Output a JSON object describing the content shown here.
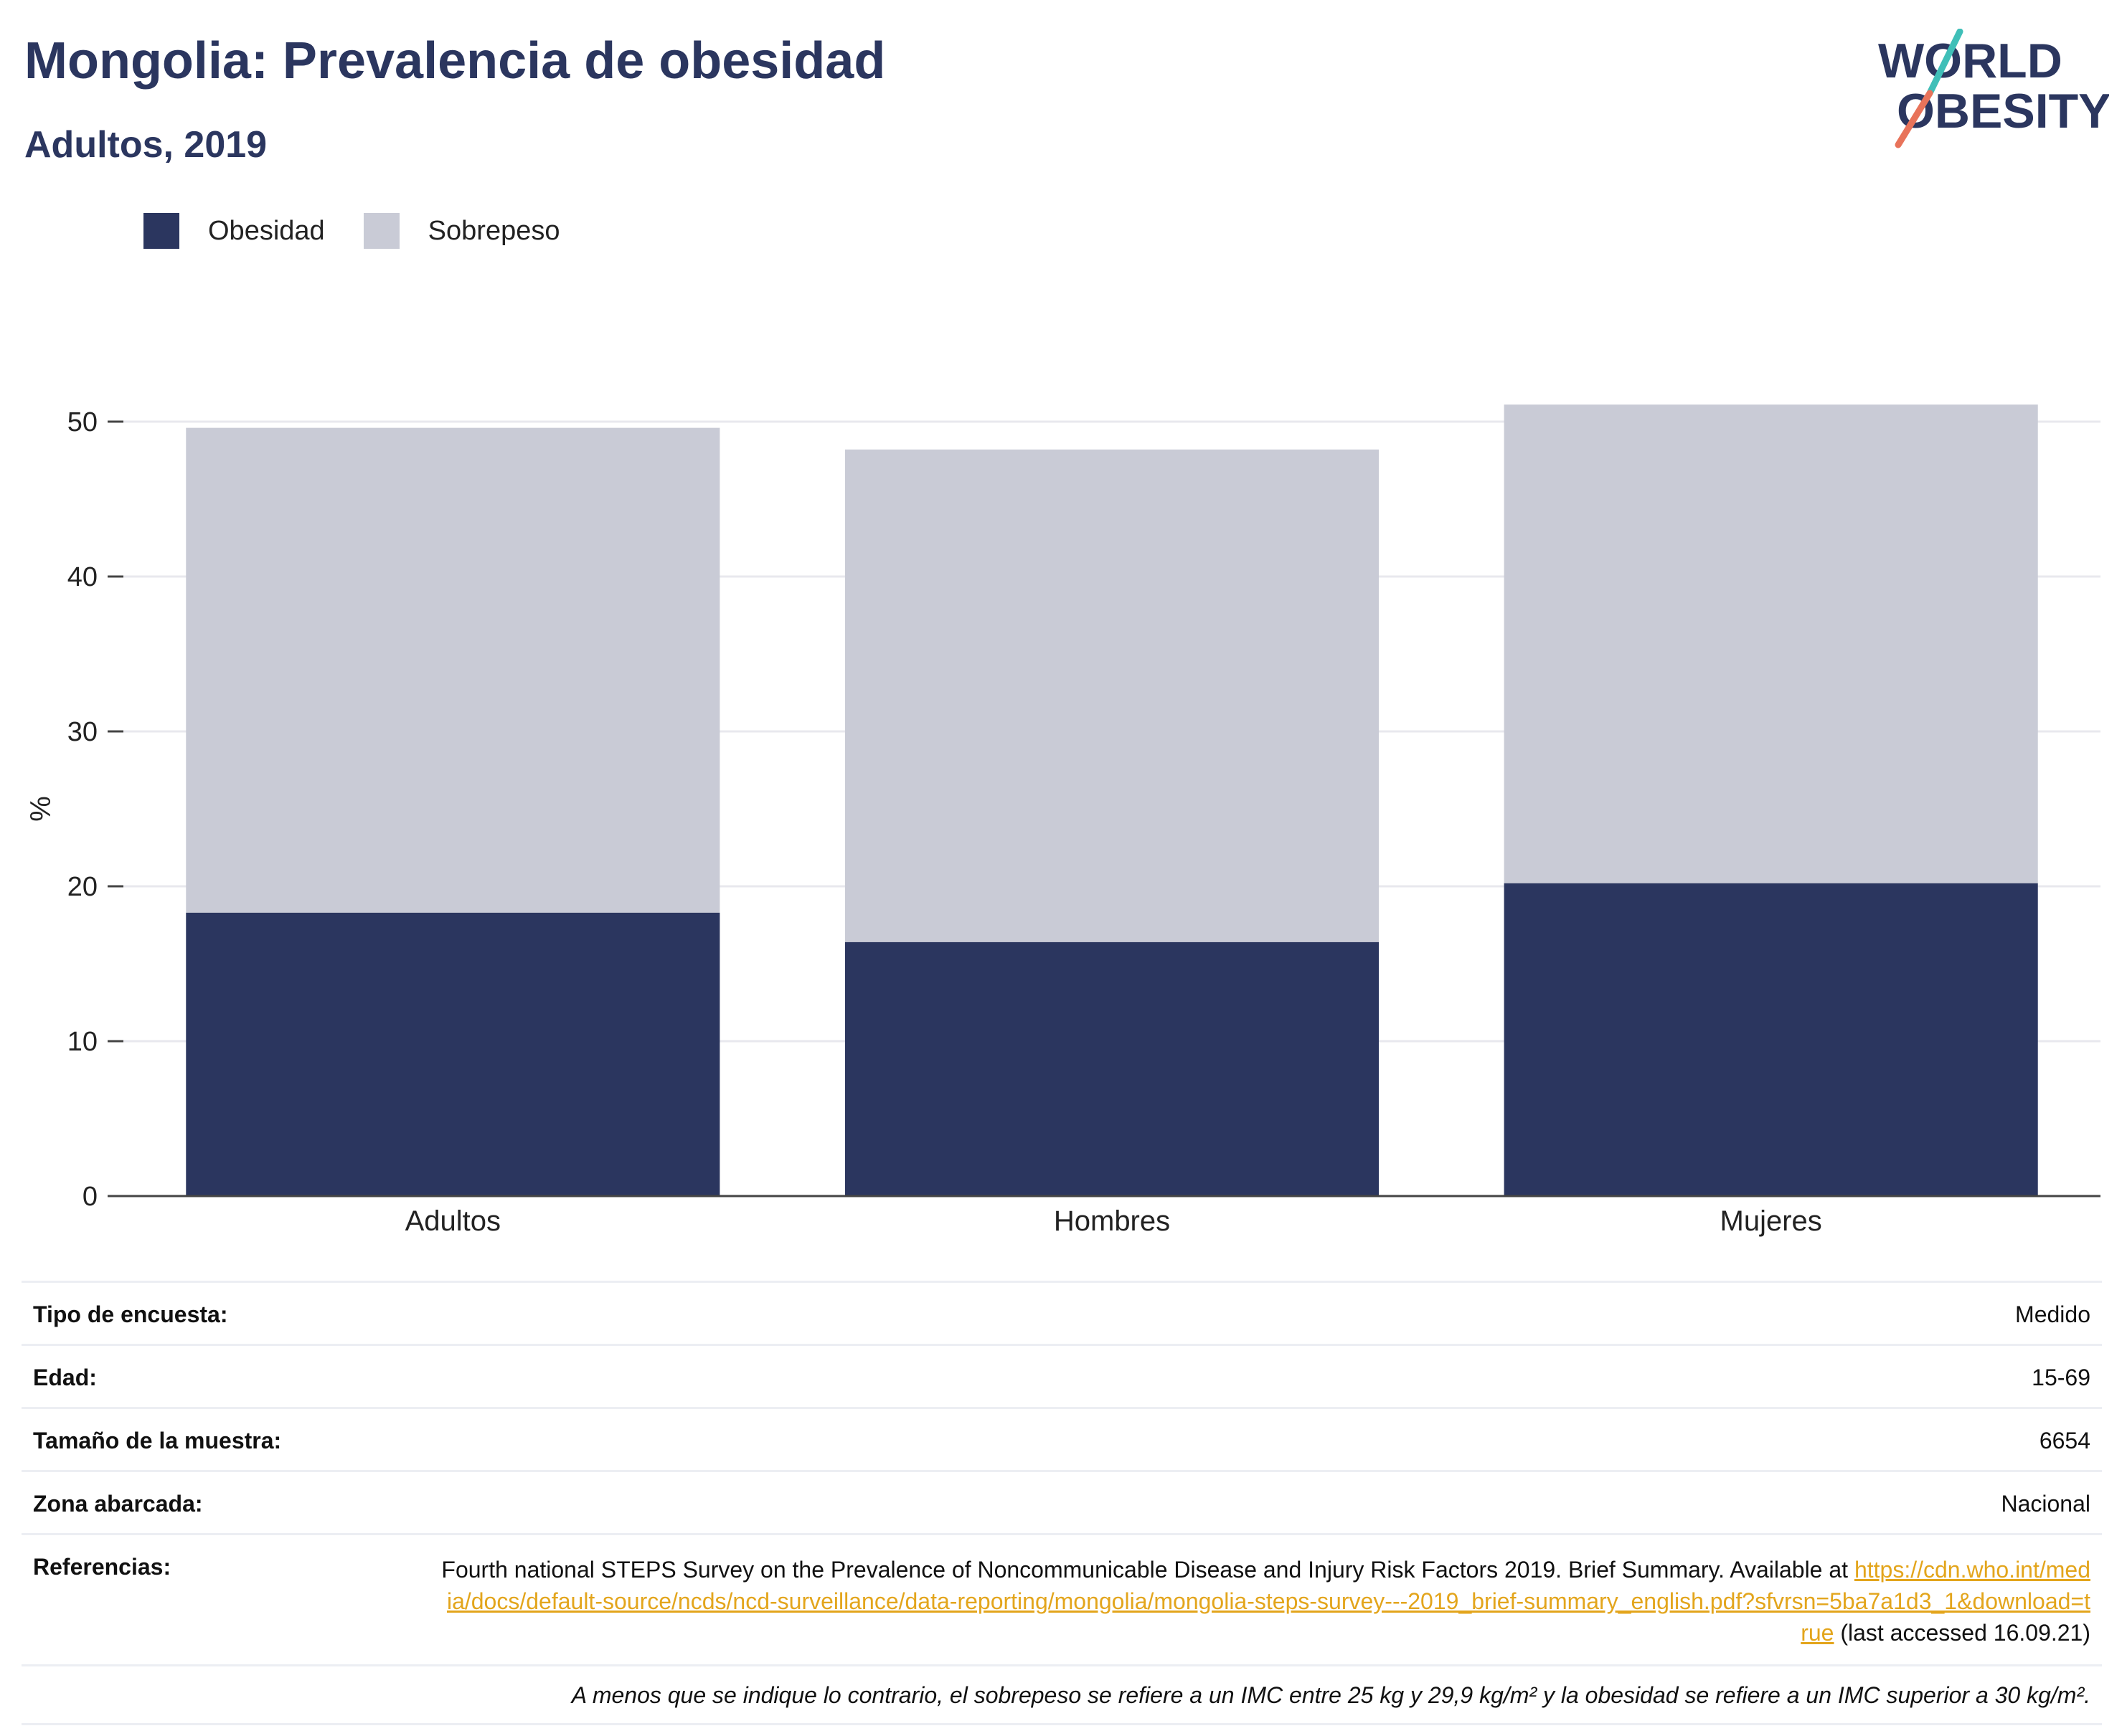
{
  "header": {
    "title": "Mongolia: Prevalencia de obesidad",
    "subtitle": "Adultos, 2019"
  },
  "logo": {
    "line1": "WORLD",
    "line2": "OBESITY",
    "colors": {
      "text": "#2b365f",
      "slash_top": "#3fbfb8",
      "slash_bottom": "#e8735a"
    }
  },
  "chart_data": {
    "type": "bar",
    "stacked": true,
    "categories": [
      "Adultos",
      "Hombres",
      "Mujeres"
    ],
    "series": [
      {
        "name": "Obesidad",
        "values": [
          18.3,
          16.4,
          20.2
        ],
        "color": "#2b365f"
      },
      {
        "name": "Sobrepeso",
        "values": [
          31.3,
          31.8,
          30.9
        ],
        "color": "#c9cbd6"
      }
    ],
    "ylabel": "%",
    "ylim": [
      0,
      50
    ],
    "yticks": [
      0,
      10,
      20,
      30,
      40,
      50
    ],
    "grid": true,
    "legend_position": "top-left"
  },
  "info": {
    "rows": [
      {
        "key": "Tipo de encuesta:",
        "value": "Medido"
      },
      {
        "key": "Edad:",
        "value": "15-69"
      },
      {
        "key": "Tamaño de la muestra:",
        "value": "6654"
      },
      {
        "key": "Zona abarcada:",
        "value": "Nacional"
      }
    ],
    "references": {
      "key": "Referencias:",
      "text_before": "Fourth national STEPS Survey on the Prevalence of Noncommunicable Disease and Injury Risk Factors 2019. Brief Summary. Available at ",
      "link": "https://cdn.who.int/media/docs/default-source/ncds/ncd-surveillance/data-reporting/mongolia/mongolia-steps-survey---2019_brief-summary_english.pdf?sfvrsn=5ba7a1d3_1&download=true",
      "text_after": " (last accessed 16.09.21)"
    },
    "note": "A menos que se indique lo contrario, el sobrepeso se refiere a un IMC entre 25 kg y 29,9 kg/m² y la obesidad se refiere a un IMC superior a 30 kg/m²."
  }
}
